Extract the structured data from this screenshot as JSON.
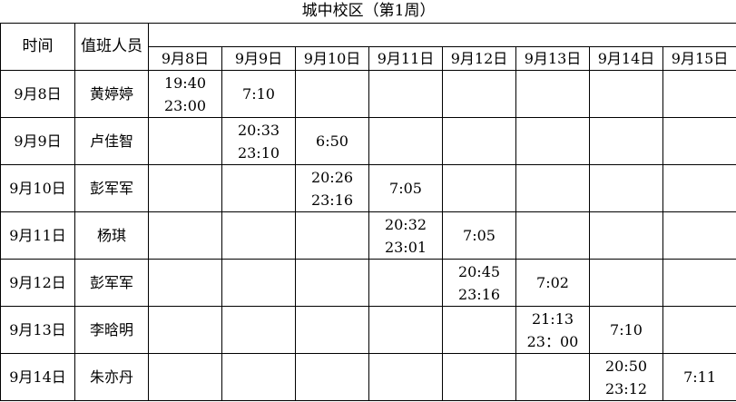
{
  "title": "城中校区（第1周）",
  "headers": {
    "time": "时间",
    "staff": "值班人员"
  },
  "dates": [
    "9月8日",
    "9月9日",
    "9月10日",
    "9月11日",
    "9月12日",
    "9月13日",
    "9月14日",
    "9月15日"
  ],
  "rows": [
    {
      "date": "9月8日",
      "name": "黄婷婷",
      "cells": [
        "19:40\n23:00",
        "7:10",
        "",
        "",
        "",
        "",
        "",
        ""
      ]
    },
    {
      "date": "9月9日",
      "name": "卢佳智",
      "cells": [
        "",
        "20:33\n23:10",
        "6:50",
        "",
        "",
        "",
        "",
        ""
      ]
    },
    {
      "date": "9月10日",
      "name": "彭军军",
      "cells": [
        "",
        "",
        "20:26\n23:16",
        "7:05",
        "",
        "",
        "",
        ""
      ]
    },
    {
      "date": "9月11日",
      "name": "杨琪",
      "cells": [
        "",
        "",
        "",
        "20:32\n23:01",
        "7:05",
        "",
        "",
        ""
      ]
    },
    {
      "date": "9月12日",
      "name": "彭军军",
      "cells": [
        "",
        "",
        "",
        "",
        "20:45\n23:16",
        "7:02",
        "",
        ""
      ]
    },
    {
      "date": "9月13日",
      "name": "李晗明",
      "cells": [
        "",
        "",
        "",
        "",
        "",
        "21:13\n23：00",
        "7:10",
        ""
      ]
    },
    {
      "date": "9月14日",
      "name": "朱亦丹",
      "cells": [
        "",
        "",
        "",
        "",
        "",
        "",
        "20:50\n23:12",
        "7:11"
      ]
    }
  ]
}
